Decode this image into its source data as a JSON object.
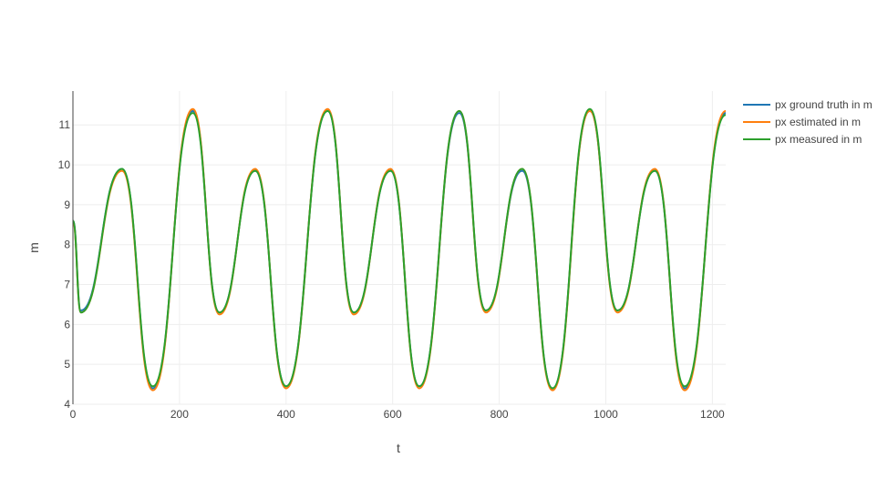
{
  "chart_data": {
    "type": "line",
    "title": "",
    "xlabel": "t",
    "ylabel": "m",
    "xlim": [
      0,
      1225
    ],
    "ylim": [
      4,
      11.85
    ],
    "xticks": [
      0,
      200,
      400,
      600,
      800,
      1000,
      1200
    ],
    "yticks": [
      4,
      5,
      6,
      7,
      8,
      9,
      10,
      11
    ],
    "grid": true,
    "legend_position": "top-right",
    "x": [
      0,
      15,
      92,
      150,
      225,
      275,
      342,
      400,
      478,
      527,
      596,
      650,
      725,
      775,
      843,
      900,
      970,
      1022,
      1092,
      1148,
      1225
    ],
    "series": [
      {
        "name": "px ground truth in m",
        "color": "#1f77b4",
        "values": [
          8.6,
          6.35,
          9.9,
          4.4,
          11.35,
          6.3,
          9.85,
          4.45,
          11.35,
          6.3,
          9.85,
          4.45,
          11.3,
          6.35,
          9.85,
          4.4,
          11.35,
          6.35,
          9.85,
          4.4,
          11.3
        ]
      },
      {
        "name": "px estimated in m",
        "color": "#ff7f0e",
        "values": [
          8.55,
          6.3,
          9.85,
          4.35,
          11.4,
          6.25,
          9.9,
          4.4,
          11.4,
          6.25,
          9.9,
          4.4,
          11.35,
          6.3,
          9.9,
          4.35,
          11.35,
          6.3,
          9.9,
          4.35,
          11.35
        ]
      },
      {
        "name": "px measured in m",
        "color": "#2ca02c",
        "values": [
          8.6,
          6.3,
          9.9,
          4.45,
          11.3,
          6.3,
          9.85,
          4.45,
          11.35,
          6.3,
          9.85,
          4.45,
          11.35,
          6.35,
          9.9,
          4.4,
          11.4,
          6.35,
          9.85,
          4.45,
          11.25
        ]
      }
    ]
  }
}
